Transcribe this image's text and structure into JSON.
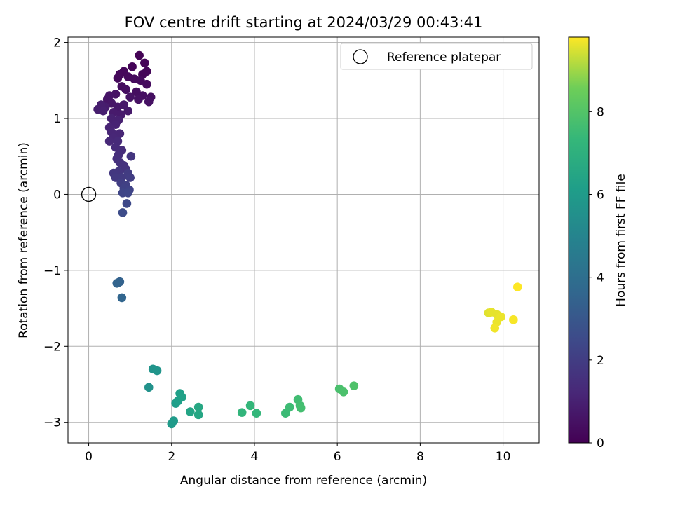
{
  "chart_data": {
    "type": "scatter",
    "title": "FOV centre drift starting at 2024/03/29 00:43:41",
    "xlabel": "Angular distance from reference (arcmin)",
    "ylabel": "Rotation from reference (arcmin)",
    "xlim": [
      -0.5,
      10.87
    ],
    "ylim": [
      -3.27,
      2.07
    ],
    "xticks": [
      0,
      2,
      4,
      6,
      8,
      10
    ],
    "yticks": [
      -3,
      -2,
      -1,
      0,
      1,
      2
    ],
    "xtick_labels": [
      "0",
      "2",
      "4",
      "6",
      "8",
      "10"
    ],
    "ytick_labels": [
      "−3",
      "−2",
      "−1",
      "0",
      "1",
      "2"
    ],
    "grid": true,
    "legend": {
      "location": "top-right",
      "entries": [
        "Reference platepar"
      ]
    },
    "colorbar": {
      "label": "Hours from first FF file",
      "colormap": "viridis",
      "range": [
        0,
        9.8
      ],
      "ticks": [
        0,
        2,
        4,
        6,
        8
      ],
      "tick_labels": [
        "0",
        "2",
        "4",
        "6",
        "8"
      ]
    },
    "reference_point": {
      "x": 0,
      "y": 0
    },
    "series": [
      {
        "name": "Reference platepar",
        "points": [
          [
            0,
            0
          ]
        ]
      },
      {
        "points": [
          [
            1.22,
            1.83,
            0.05
          ],
          [
            1.35,
            1.73,
            0.1
          ],
          [
            1.05,
            1.68,
            0.1
          ],
          [
            1.4,
            1.62,
            0.15
          ],
          [
            1.3,
            1.58,
            0.15
          ],
          [
            0.85,
            1.62,
            0.2
          ],
          [
            0.75,
            1.58,
            0.2
          ],
          [
            0.7,
            1.53,
            0.25
          ],
          [
            0.95,
            1.55,
            0.25
          ],
          [
            1.1,
            1.52,
            0.3
          ],
          [
            1.25,
            1.5,
            0.3
          ],
          [
            1.4,
            1.45,
            0.35
          ],
          [
            0.8,
            1.42,
            0.35
          ],
          [
            0.9,
            1.38,
            0.4
          ],
          [
            1.15,
            1.35,
            0.4
          ],
          [
            1.3,
            1.3,
            0.45
          ],
          [
            1.5,
            1.28,
            0.45
          ],
          [
            1.45,
            1.22,
            0.5
          ],
          [
            1.2,
            1.25,
            0.5
          ],
          [
            1.0,
            1.28,
            0.55
          ],
          [
            0.65,
            1.32,
            0.55
          ],
          [
            0.5,
            1.3,
            0.6
          ],
          [
            0.45,
            1.25,
            0.6
          ],
          [
            0.55,
            1.2,
            0.65
          ],
          [
            0.7,
            1.15,
            0.7
          ],
          [
            0.85,
            1.18,
            0.7
          ],
          [
            0.95,
            1.1,
            0.75
          ],
          [
            0.78,
            1.05,
            0.8
          ],
          [
            0.6,
            1.08,
            0.8
          ],
          [
            0.4,
            1.15,
            0.85
          ],
          [
            0.3,
            1.18,
            0.9
          ],
          [
            0.22,
            1.12,
            0.9
          ],
          [
            0.35,
            1.1,
            0.95
          ],
          [
            0.55,
            1.0,
            1.0
          ],
          [
            0.72,
            0.98,
            1.0
          ],
          [
            0.65,
            0.92,
            1.05
          ],
          [
            0.5,
            0.88,
            1.1
          ],
          [
            0.55,
            0.82,
            1.15
          ],
          [
            0.75,
            0.8,
            1.15
          ],
          [
            0.6,
            0.75,
            1.2
          ],
          [
            0.5,
            0.7,
            1.25
          ],
          [
            0.7,
            0.7,
            1.3
          ],
          [
            0.65,
            0.62,
            1.35
          ],
          [
            0.8,
            0.58,
            1.4
          ],
          [
            0.72,
            0.52,
            1.45
          ],
          [
            0.68,
            0.47,
            1.5
          ],
          [
            0.75,
            0.42,
            1.55
          ],
          [
            0.85,
            0.38,
            1.6
          ],
          [
            0.9,
            0.33,
            1.65
          ],
          [
            1.02,
            0.5,
            1.7
          ],
          [
            0.72,
            0.3,
            1.75
          ],
          [
            0.6,
            0.28,
            1.8
          ],
          [
            0.65,
            0.22,
            1.85
          ],
          [
            0.8,
            0.22,
            1.9
          ],
          [
            0.95,
            0.28,
            1.95
          ],
          [
            1.0,
            0.22,
            2.0
          ],
          [
            0.78,
            0.15,
            2.05
          ],
          [
            0.9,
            0.12,
            2.1
          ],
          [
            0.85,
            0.08,
            2.15
          ],
          [
            0.98,
            0.06,
            2.2
          ],
          [
            0.82,
            0.02,
            2.3
          ],
          [
            0.95,
            0.02,
            2.35
          ],
          [
            0.92,
            -0.12,
            2.45
          ],
          [
            0.82,
            -0.24,
            2.55
          ],
          [
            0.72,
            -1.16,
            3.4
          ],
          [
            0.75,
            -1.15,
            3.45
          ],
          [
            0.68,
            -1.17,
            3.5
          ],
          [
            0.8,
            -1.36,
            3.6
          ],
          [
            1.45,
            -2.54,
            5.6
          ],
          [
            1.55,
            -2.3,
            5.7
          ],
          [
            1.65,
            -2.32,
            5.75
          ],
          [
            2.0,
            -3.02,
            6.0
          ],
          [
            2.05,
            -2.98,
            6.0
          ],
          [
            2.1,
            -2.75,
            6.1
          ],
          [
            2.15,
            -2.72,
            6.15
          ],
          [
            2.2,
            -2.62,
            6.2
          ],
          [
            2.25,
            -2.67,
            6.25
          ],
          [
            2.45,
            -2.86,
            6.4
          ],
          [
            2.65,
            -2.9,
            6.5
          ],
          [
            2.65,
            -2.8,
            6.55
          ],
          [
            3.7,
            -2.87,
            7.2
          ],
          [
            3.9,
            -2.78,
            7.3
          ],
          [
            4.05,
            -2.88,
            7.3
          ],
          [
            4.75,
            -2.88,
            7.5
          ],
          [
            4.85,
            -2.8,
            7.55
          ],
          [
            5.05,
            -2.7,
            7.6
          ],
          [
            5.1,
            -2.78,
            7.65
          ],
          [
            5.12,
            -2.81,
            7.7
          ],
          [
            6.05,
            -2.56,
            7.8
          ],
          [
            6.15,
            -2.6,
            7.85
          ],
          [
            6.4,
            -2.52,
            7.9
          ],
          [
            9.65,
            -1.56,
            9.55
          ],
          [
            9.72,
            -1.55,
            9.6
          ],
          [
            9.85,
            -1.58,
            9.6
          ],
          [
            9.95,
            -1.61,
            9.65
          ],
          [
            9.85,
            -1.68,
            9.65
          ],
          [
            9.8,
            -1.76,
            9.7
          ],
          [
            10.25,
            -1.65,
            9.75
          ],
          [
            10.35,
            -1.22,
            9.8
          ]
        ]
      }
    ]
  }
}
